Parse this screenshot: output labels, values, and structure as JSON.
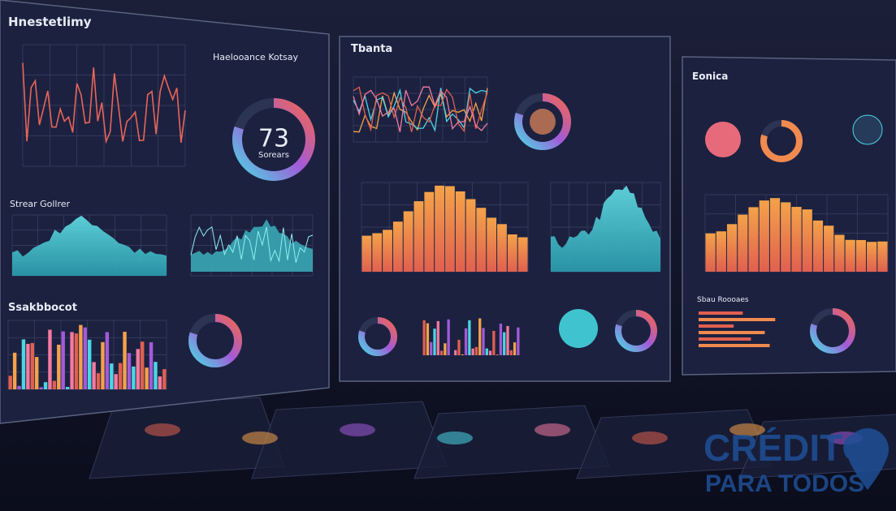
{
  "panels": [
    {
      "title": "Hnestetlimy",
      "subtitle": "Strear Gollrer",
      "section": "Ssakbbocot",
      "gauge": {
        "header": "Haelooance Kotsay",
        "value": "73",
        "caption": "Sorears"
      }
    },
    {
      "title": "Tbanta"
    },
    {
      "title": "Eonica",
      "section": "Sbau Roooaes"
    }
  ],
  "watermark": {
    "line1": "CRÉDITO",
    "line2": "PARA TODOS"
  }
}
